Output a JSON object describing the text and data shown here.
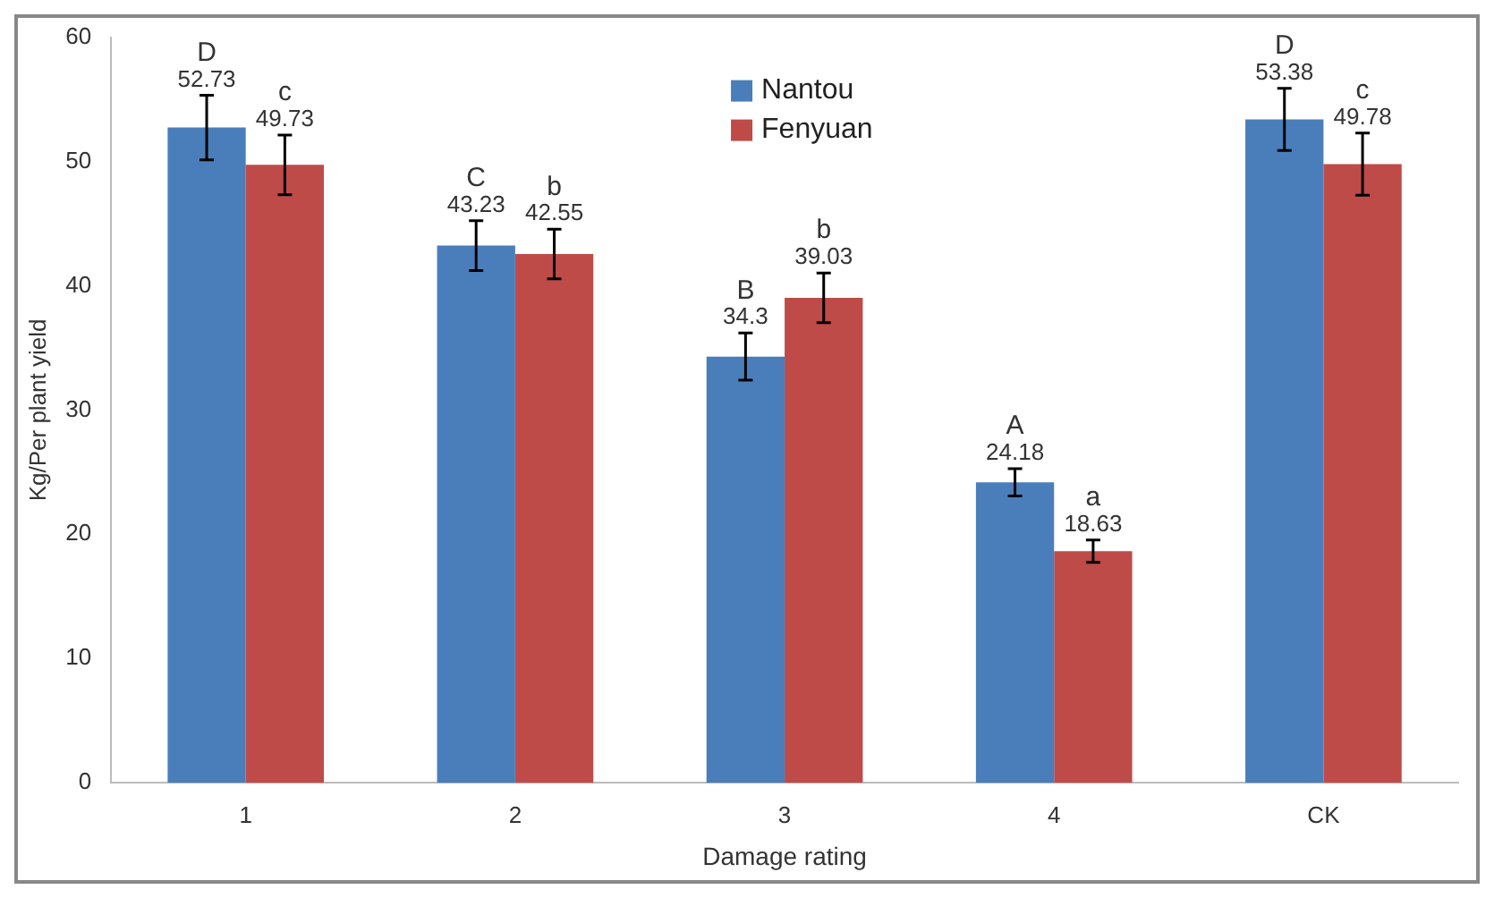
{
  "chart_data": {
    "type": "bar",
    "xlabel": "Damage rating",
    "ylabel": "Kg/Per plant yield",
    "categories": [
      "1",
      "2",
      "3",
      "4",
      "CK"
    ],
    "series": [
      {
        "name": "Nantou",
        "color": "#4a7ebb",
        "values": [
          52.73,
          43.23,
          34.3,
          24.18,
          53.38
        ],
        "errors": [
          2.6,
          2.0,
          1.9,
          1.1,
          2.5
        ]
      },
      {
        "name": "Fenyuan",
        "color": "#be4b48",
        "values": [
          49.73,
          42.55,
          39.03,
          18.63,
          49.78
        ],
        "errors": [
          2.4,
          2.0,
          2.0,
          0.9,
          2.5
        ]
      }
    ],
    "ylim": [
      0,
      60
    ],
    "yticks": [
      0,
      10,
      20,
      30,
      40,
      50,
      60
    ],
    "grid": false,
    "legend": "top",
    "data_labels": true,
    "annotations": [
      {
        "text": "D",
        "x": "1",
        "y": 52.73
      },
      {
        "text": "c",
        "x": "1",
        "y": 49.73
      },
      {
        "text": "C",
        "x": "2",
        "y": 43.23
      },
      {
        "text": "b",
        "x": "2",
        "y": 42.55
      },
      {
        "text": "B",
        "x": "3",
        "y": 34.3
      },
      {
        "text": "b",
        "x": "3",
        "y": 39.03
      },
      {
        "text": "A",
        "x": "4",
        "y": 24.18
      },
      {
        "text": "a",
        "x": "4",
        "y": 18.63
      },
      {
        "text": "D",
        "x": "CK",
        "y": 53.38
      },
      {
        "text": "c",
        "x": "CK",
        "y": 49.78
      }
    ]
  }
}
